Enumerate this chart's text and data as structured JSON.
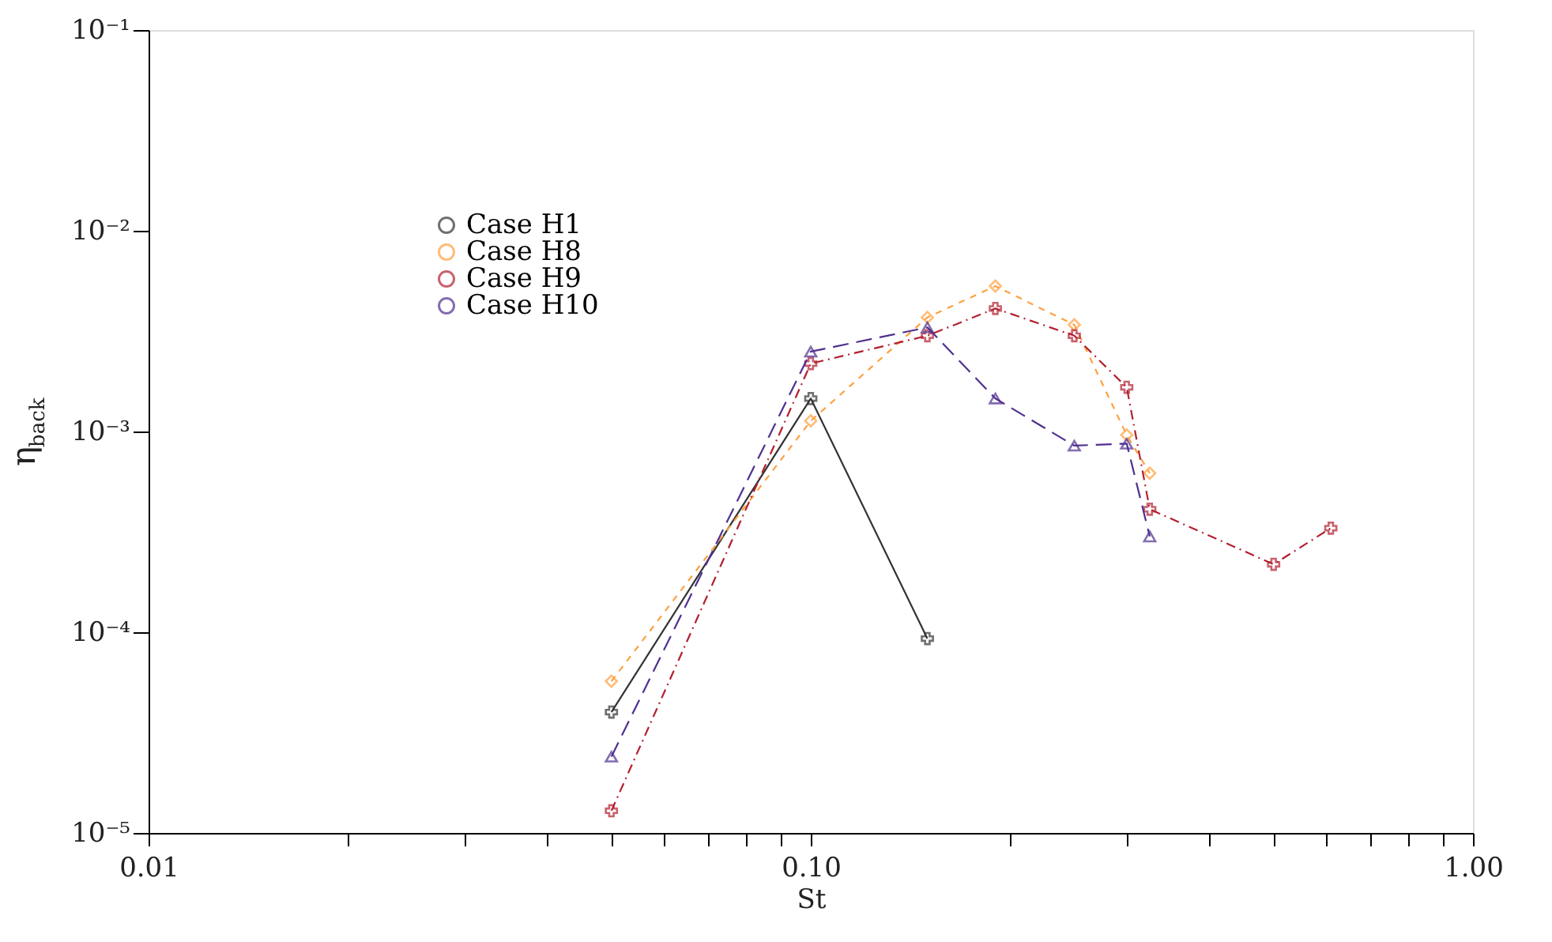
{
  "chart_data": {
    "type": "line",
    "xlabel": "St",
    "ylabel": "η$_{back}$",
    "log": "xy",
    "grid": false,
    "legend": "top left",
    "xlim": [
      0.01,
      1
    ],
    "ylim": [
      1e-05,
      0.1
    ],
    "xticks": [
      {
        "value": 0.01,
        "label": "0.01"
      },
      {
        "value": 0.02,
        "label": null
      },
      {
        "value": 0.03,
        "label": null
      },
      {
        "value": 0.04,
        "label": null
      },
      {
        "value": 0.05,
        "label": null
      },
      {
        "value": 0.06,
        "label": null
      },
      {
        "value": 0.07,
        "label": null
      },
      {
        "value": 0.08,
        "label": null
      },
      {
        "value": 0.09,
        "label": null
      },
      {
        "value": 0.1,
        "label": "0.10"
      },
      {
        "value": 0.2,
        "label": null
      },
      {
        "value": 0.3,
        "label": null
      },
      {
        "value": 0.4,
        "label": null
      },
      {
        "value": 0.5,
        "label": null
      },
      {
        "value": 0.6,
        "label": null
      },
      {
        "value": 0.7,
        "label": null
      },
      {
        "value": 0.8,
        "label": null
      },
      {
        "value": 0.9,
        "label": null
      },
      {
        "value": 1,
        "label": "1.00"
      }
    ],
    "yticks": [
      {
        "value": 1e-05,
        "label": "10⁻⁵"
      },
      {
        "value": 0.0001,
        "label": "10⁻⁴"
      },
      {
        "value": 0.001,
        "label": "10⁻³"
      },
      {
        "value": 0.01,
        "label": "10⁻²"
      },
      {
        "value": 0.1,
        "label": "10⁻¹"
      }
    ],
    "series": [
      {
        "name": "Case H1",
        "color": "#333333",
        "marker": "cross",
        "line_style": "solid",
        "x": [
          0.05,
          0.1,
          0.15
        ],
        "values": [
          4e-05,
          0.00146,
          9.3e-05
        ]
      },
      {
        "name": "Case H8",
        "color": "#ffa040",
        "marker": "diamond",
        "line_style": "dashed",
        "x": [
          0.05,
          0.1,
          0.15,
          0.19,
          0.25,
          0.3,
          0.325
        ],
        "values": [
          5.7e-05,
          0.00113,
          0.0037,
          0.0053,
          0.0034,
          0.00096,
          0.00062
        ]
      },
      {
        "name": "Case H9",
        "color": "#b22030",
        "marker": "cross",
        "line_style": "dashdot",
        "x": [
          0.05,
          0.1,
          0.15,
          0.19,
          0.25,
          0.3,
          0.325,
          0.5,
          0.61
        ],
        "values": [
          1.29e-05,
          0.00218,
          0.003,
          0.0041,
          0.003,
          0.00166,
          0.00041,
          0.000218,
          0.00033
        ]
      },
      {
        "name": "Case H10",
        "color": "#503090",
        "marker": "triangle",
        "line_style": "longdash",
        "x": [
          0.05,
          0.1,
          0.15,
          0.19,
          0.25,
          0.3,
          0.325
        ],
        "values": [
          2.4e-05,
          0.0025,
          0.0033,
          0.00146,
          0.00085,
          0.00087,
          0.0003
        ]
      }
    ]
  }
}
